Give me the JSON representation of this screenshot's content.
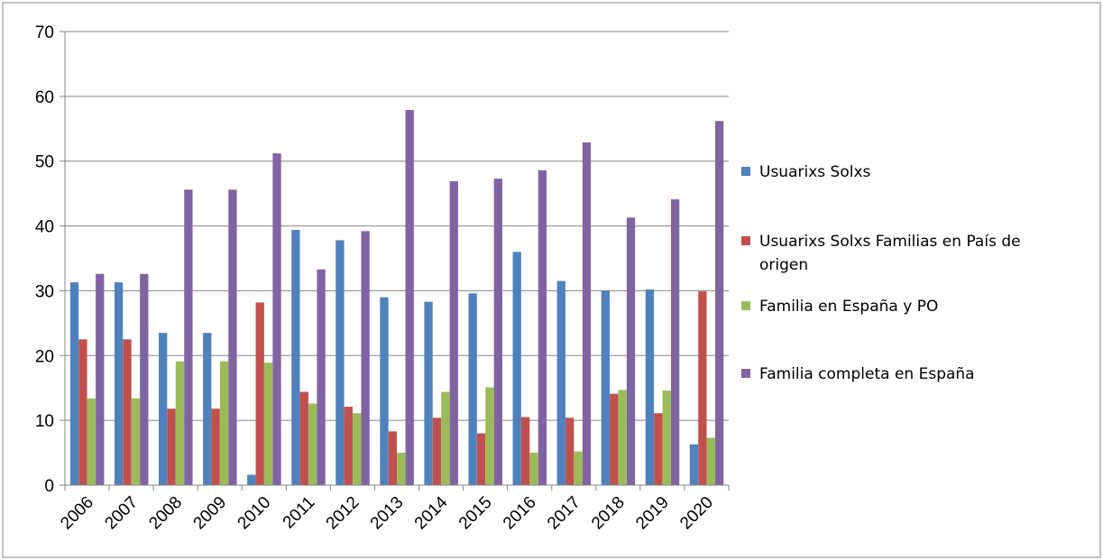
{
  "chart_data": {
    "type": "bar",
    "categories": [
      "2006",
      "2007",
      "2008",
      "2009",
      "2010",
      "2011",
      "2012",
      "2013",
      "2014",
      "2015",
      "2016",
      "2017",
      "2018",
      "2019",
      "2020"
    ],
    "series": [
      {
        "name": "Usuarixs Solxs",
        "color": "#4F81BD",
        "values": [
          31.3,
          31.3,
          23.5,
          23.5,
          1.6,
          39.4,
          37.8,
          29.0,
          28.3,
          29.6,
          36.0,
          31.5,
          30.0,
          30.2,
          6.3
        ]
      },
      {
        "name": "Usuarixs Solxs Familias en País de origen",
        "color": "#C0504D",
        "values": [
          22.5,
          22.5,
          11.8,
          11.8,
          28.2,
          14.4,
          12.1,
          8.3,
          10.4,
          8.0,
          10.5,
          10.4,
          14.1,
          11.1,
          29.9
        ]
      },
      {
        "name": "Familia en España y PO",
        "color": "#9BBB59",
        "values": [
          13.4,
          13.4,
          19.1,
          19.1,
          18.9,
          12.6,
          11.1,
          5.0,
          14.4,
          15.1,
          5.0,
          5.2,
          14.7,
          14.6,
          7.3
        ]
      },
      {
        "name": "Familia completa en España",
        "color": "#8064A2",
        "values": [
          32.6,
          32.6,
          45.6,
          45.6,
          51.2,
          33.3,
          39.2,
          57.9,
          46.9,
          47.3,
          48.6,
          52.9,
          41.3,
          44.1,
          56.2
        ]
      }
    ],
    "ylim": [
      0,
      70
    ],
    "yticks": [
      0,
      10,
      20,
      30,
      40,
      50,
      60,
      70
    ],
    "grid": true,
    "legend_position": "right"
  }
}
